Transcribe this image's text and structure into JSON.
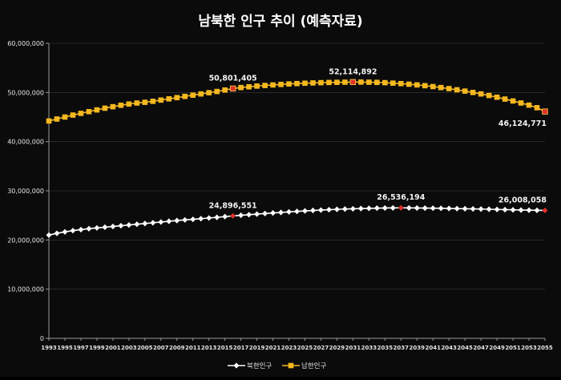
{
  "chart_data": {
    "type": "line",
    "title": "남북한 인구 추이 (예측자료)",
    "ylim": [
      0,
      60000000
    ],
    "y_ticks": [
      "0",
      "10,000,000",
      "20,000,000",
      "30,000,000",
      "40,000,000",
      "50,000,000",
      "60,000,000"
    ],
    "x_tick_labels": [
      "1993",
      "1995",
      "1997",
      "1999",
      "2001",
      "2003",
      "2005",
      "2007",
      "2009",
      "2011",
      "2013",
      "2015",
      "2017",
      "2019",
      "2021",
      "2023",
      "2025",
      "2027",
      "2029",
      "2031",
      "2033",
      "2035",
      "2037",
      "2039",
      "2041",
      "2043",
      "2045",
      "2047",
      "2049",
      "2051",
      "2053",
      "2055"
    ],
    "x": [
      1993,
      1994,
      1995,
      1996,
      1997,
      1998,
      1999,
      2000,
      2001,
      2002,
      2003,
      2004,
      2005,
      2006,
      2007,
      2008,
      2009,
      2010,
      2011,
      2012,
      2013,
      2014,
      2015,
      2016,
      2017,
      2018,
      2019,
      2020,
      2021,
      2022,
      2023,
      2024,
      2025,
      2026,
      2027,
      2028,
      2029,
      2030,
      2031,
      2032,
      2033,
      2034,
      2035,
      2036,
      2037,
      2038,
      2039,
      2040,
      2041,
      2042,
      2043,
      2044,
      2045,
      2046,
      2047,
      2048,
      2049,
      2050,
      2051,
      2052,
      2053,
      2054,
      2055
    ],
    "grid": true,
    "legend_position": "bottom",
    "series": [
      {
        "name": "북한인구",
        "color": "#ffffff",
        "marker": "diamond",
        "values": [
          21000000,
          21350000,
          21650000,
          21900000,
          22100000,
          22300000,
          22450000,
          22600000,
          22750000,
          22900000,
          23050000,
          23200000,
          23350000,
          23500000,
          23650000,
          23800000,
          23950000,
          24080000,
          24200000,
          24330000,
          24470000,
          24600000,
          24750000,
          24896551,
          25020000,
          25140000,
          25260000,
          25380000,
          25490000,
          25600000,
          25710000,
          25810000,
          25910000,
          26000000,
          26080000,
          26160000,
          26230000,
          26290000,
          26340000,
          26390000,
          26430000,
          26470000,
          26500000,
          26520000,
          26536194,
          26520000,
          26500000,
          26480000,
          26460000,
          26440000,
          26410000,
          26380000,
          26350000,
          26320000,
          26290000,
          26250000,
          26210000,
          26170000,
          26130000,
          26090000,
          26060000,
          26030000,
          26008058
        ],
        "labels": [
          {
            "x": 2016,
            "text": "24,896,551"
          },
          {
            "x": 2037,
            "text": "26,536,194"
          },
          {
            "x": 2055,
            "text": "26,008,058"
          }
        ]
      },
      {
        "name": "남한인구",
        "color": "#f5b820",
        "marker": "square",
        "values": [
          44200000,
          44600000,
          45000000,
          45400000,
          45750000,
          46100000,
          46450000,
          46800000,
          47100000,
          47400000,
          47650000,
          47850000,
          48000000,
          48200000,
          48450000,
          48700000,
          48950000,
          49200000,
          49450000,
          49700000,
          49950000,
          50200000,
          50500000,
          50801405,
          51000000,
          51150000,
          51300000,
          51420000,
          51530000,
          51630000,
          51730000,
          51810000,
          51880000,
          51940000,
          51990000,
          52030000,
          52060000,
          52090000,
          52114892,
          52110000,
          52090000,
          52050000,
          51990000,
          51900000,
          51800000,
          51680000,
          51540000,
          51380000,
          51200000,
          51000000,
          50780000,
          50540000,
          50280000,
          50000000,
          49700000,
          49380000,
          49030000,
          48660000,
          48270000,
          47860000,
          47430000,
          46900000,
          46124771
        ],
        "labels": [
          {
            "x": 2016,
            "text": "50,801,405"
          },
          {
            "x": 2031,
            "text": "52,114,892"
          },
          {
            "x": 2055,
            "text": "46,124,771"
          }
        ]
      }
    ],
    "highlight_color": "#e0302a"
  }
}
